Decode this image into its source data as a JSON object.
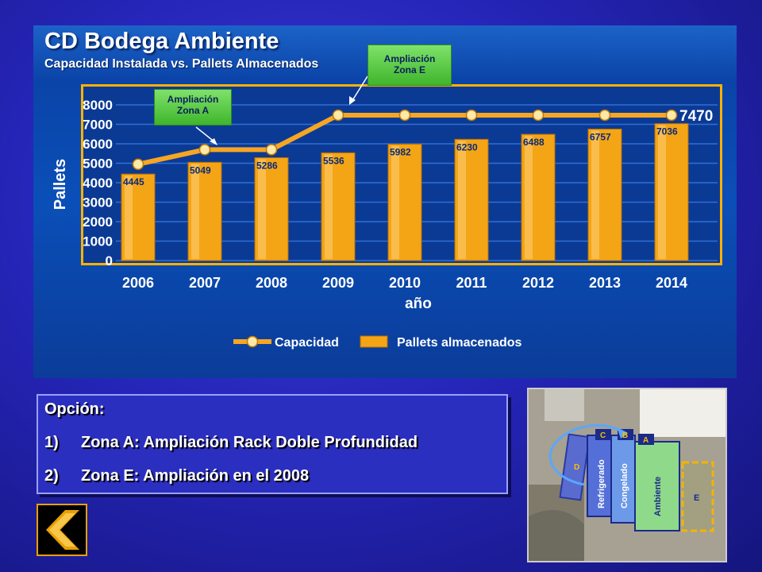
{
  "chart": {
    "title": "CD Bodega Ambiente",
    "subtitle": "Capacidad Instalada vs. Pallets Almacenados"
  },
  "callouts": {
    "zona_a": [
      "Ampliación",
      "Zona A"
    ],
    "zona_e": [
      "Ampliación",
      "Zona E"
    ]
  },
  "chart_data": {
    "type": "bar",
    "categories": [
      "2006",
      "2007",
      "2008",
      "2009",
      "2010",
      "2011",
      "2012",
      "2013",
      "2014"
    ],
    "series": [
      {
        "name": "Pallets almacenados",
        "type": "bar",
        "values": [
          4445,
          5049,
          5286,
          5536,
          5982,
          6230,
          6488,
          6757,
          7036
        ]
      },
      {
        "name": "Capacidad",
        "type": "line",
        "values": [
          4950,
          5700,
          5700,
          7470,
          7470,
          7470,
          7470,
          7470,
          7470
        ]
      }
    ],
    "line_end_label": "7470",
    "xlabel": "año",
    "ylabel": "Pallets",
    "ylim": [
      0,
      8000
    ],
    "yticks": [
      0,
      1000,
      2000,
      3000,
      4000,
      5000,
      6000,
      7000,
      8000
    ],
    "grid": true,
    "legend": "bottom",
    "colors": {
      "bar": "#f4a516",
      "line": "#f6a623",
      "marker": "#ffe9a8",
      "axis_text": "#ffffff",
      "bar_label": "#0a2a7a"
    }
  },
  "options": {
    "title": "Opción:",
    "items": [
      {
        "num": "1)",
        "text": "Zona A: Ampliación Rack Doble Profundidad"
      },
      {
        "num": "2)",
        "text": "Zona E: Ampliación en el 2008"
      }
    ]
  },
  "map": {
    "zone_labels": [
      "C",
      "B",
      "A",
      "D",
      "E"
    ],
    "areas": [
      "Refrigerado",
      "Congelado",
      "Ambiente"
    ]
  },
  "nav": {
    "icon": "back-arrow-icon"
  }
}
